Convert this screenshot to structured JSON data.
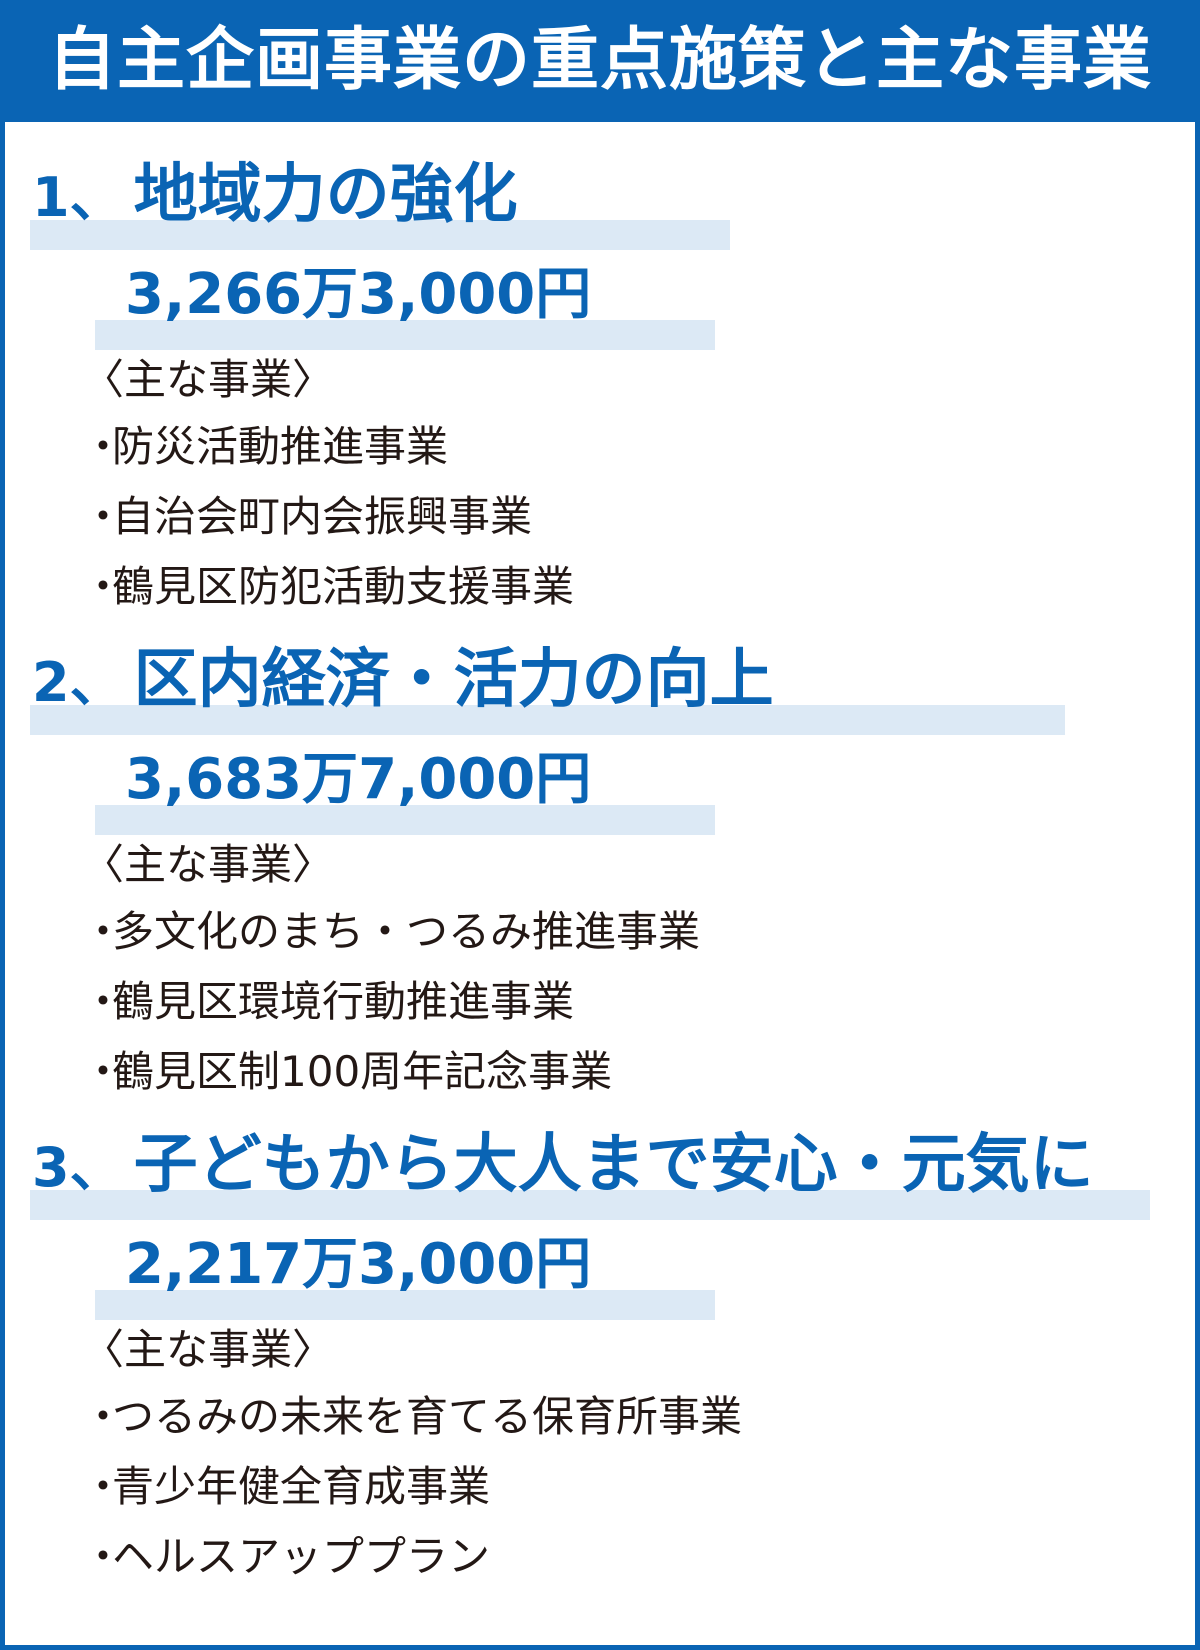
{
  "title": "自主企画事業の重点施策と主な事業",
  "colors": {
    "accent": "#0a64b4",
    "highlight": "#dce9f5",
    "text": "#231815"
  },
  "bullet": "・",
  "sections": [
    {
      "number": "1、",
      "title": "地域力の強化",
      "amount": "3,266万3,000円",
      "label": "〈主な事業〉",
      "items": [
        "防災活動推進事業",
        "自治会町内会振興事業",
        "鶴見区防犯活動支援事業"
      ]
    },
    {
      "number": "2、",
      "title": "区内経済・活力の向上",
      "amount": "3,683万7,000円",
      "label": "〈主な事業〉",
      "items": [
        "多文化のまち・つるみ推進事業",
        "鶴見区環境行動推進事業",
        "鶴見区制100周年記念事業"
      ]
    },
    {
      "number": "3、",
      "title": "子どもから大人まで安心・元気に",
      "amount": "2,217万3,000円",
      "label": "〈主な事業〉",
      "items": [
        "つるみの未来を育てる保育所事業",
        "青少年健全育成事業",
        "ヘルスアッププラン"
      ]
    }
  ]
}
